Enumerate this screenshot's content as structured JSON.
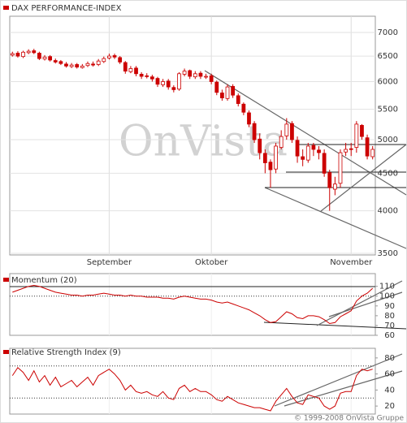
{
  "chart_data": [
    {
      "type": "candlestick",
      "title": "DAX PERFORMANCE-INDEX",
      "color": "#cc0000",
      "categories": [
        null,
        null,
        null,
        null,
        null,
        null,
        null,
        null,
        null,
        null,
        null,
        null,
        null,
        null,
        null,
        null,
        null,
        null,
        "September",
        null,
        null,
        null,
        null,
        null,
        null,
        null,
        null,
        null,
        null,
        null,
        null,
        null,
        null,
        null,
        null,
        null,
        null,
        "Oktober",
        null,
        null,
        null,
        null,
        null,
        null,
        null,
        null,
        null,
        null,
        null,
        null,
        null,
        null,
        null,
        null,
        null,
        null,
        null,
        null,
        null,
        null,
        null,
        null,
        null,
        "November",
        null,
        null,
        null,
        null
      ],
      "open": [
        6520,
        6560,
        6490,
        6570,
        6610,
        6560,
        6440,
        6490,
        6410,
        6390,
        6340,
        6290,
        6330,
        6270,
        6310,
        6340,
        6330,
        6390,
        6460,
        6510,
        6470,
        6370,
        6190,
        6260,
        6140,
        6110,
        6090,
        6060,
        5940,
        6010,
        5890,
        5860,
        6140,
        6210,
        6090,
        6160,
        6090,
        6110,
        5990,
        5790,
        5690,
        5910,
        5740,
        5590,
        5440,
        5260,
        5010,
        4790,
        4660,
        4560,
        4880,
        5060,
        5260,
        4990,
        4740,
        4690,
        4910,
        4840,
        4790,
        4510,
        4280,
        4360,
        4810,
        4860,
        4880,
        5230,
        5030,
        4740
      ],
      "high": [
        6590,
        6600,
        6610,
        6640,
        6650,
        6590,
        6520,
        6520,
        6450,
        6420,
        6380,
        6360,
        6360,
        6340,
        6390,
        6390,
        6440,
        6490,
        6550,
        6550,
        6500,
        6400,
        6300,
        6300,
        6180,
        6160,
        6130,
        6090,
        6050,
        6050,
        5930,
        6180,
        6250,
        6230,
        6200,
        6200,
        6150,
        6150,
        6020,
        5850,
        5950,
        5950,
        5780,
        5620,
        5480,
        5300,
        5100,
        4850,
        4700,
        4950,
        5150,
        5350,
        5300,
        5050,
        4850,
        4950,
        4950,
        4900,
        4850,
        4550,
        4450,
        4850,
        4950,
        4950,
        5300,
        5250,
        5080,
        4900
      ],
      "low": [
        6490,
        6470,
        6460,
        6540,
        6540,
        6420,
        6410,
        6390,
        6350,
        6320,
        6270,
        6260,
        6250,
        6250,
        6280,
        6290,
        6300,
        6360,
        6430,
        6440,
        6340,
        6150,
        6160,
        6100,
        6050,
        6060,
        6000,
        5900,
        5900,
        5850,
        5800,
        5830,
        6100,
        6050,
        6050,
        6050,
        6050,
        5950,
        5750,
        5650,
        5650,
        5700,
        5550,
        5400,
        5200,
        4950,
        4700,
        4500,
        4300,
        4500,
        4850,
        5000,
        4950,
        4650,
        4600,
        4650,
        4750,
        4700,
        4450,
        4000,
        4200,
        4300,
        4750,
        4750,
        4800,
        5000,
        4700,
        4700
      ],
      "close": [
        6550,
        6500,
        6580,
        6600,
        6570,
        6450,
        6480,
        6420,
        6380,
        6350,
        6300,
        6320,
        6280,
        6300,
        6350,
        6320,
        6400,
        6450,
        6500,
        6480,
        6380,
        6200,
        6250,
        6150,
        6100,
        6100,
        6050,
        5950,
        6000,
        5900,
        5850,
        6150,
        6200,
        6100,
        6150,
        6100,
        6100,
        6000,
        5800,
        5700,
        5900,
        5750,
        5600,
        5450,
        5250,
        5000,
        4800,
        4650,
        4550,
        4900,
        5050,
        5250,
        5000,
        4750,
        4700,
        4900,
        4850,
        4800,
        4500,
        4300,
        4350,
        4800,
        4850,
        4850,
        5250,
        5050,
        4750,
        4850
      ],
      "ylim": [
        3500,
        7000
      ],
      "yticks": [
        3500,
        4000,
        4500,
        5000,
        5500,
        6000,
        6500,
        7000
      ],
      "log": true,
      "grid": true
    },
    {
      "type": "line",
      "title": "Momentum (20)",
      "color": "#cc0000",
      "values": [
        104,
        106,
        108,
        110,
        111,
        110,
        108,
        106,
        104,
        103,
        102,
        101,
        101,
        100,
        101,
        101,
        102,
        103,
        102,
        101,
        101,
        100,
        101,
        100,
        100,
        99,
        99,
        99,
        98,
        98,
        97,
        99,
        100,
        99,
        98,
        97,
        97,
        96,
        94,
        93,
        94,
        92,
        90,
        88,
        86,
        83,
        80,
        76,
        73,
        74,
        79,
        84,
        82,
        78,
        77,
        80,
        80,
        79,
        76,
        72,
        73,
        79,
        82,
        85,
        95,
        100,
        103,
        108
      ],
      "ylim": [
        60,
        123
      ],
      "yticks": [
        60,
        70,
        80,
        90,
        100,
        110
      ],
      "reference": [
        100
      ]
    },
    {
      "type": "line",
      "title": "Relative Strength Index (9)",
      "color": "#cc0000",
      "values": [
        58,
        68,
        62,
        52,
        64,
        50,
        58,
        46,
        56,
        44,
        48,
        52,
        44,
        50,
        56,
        46,
        58,
        62,
        66,
        60,
        52,
        40,
        46,
        38,
        36,
        38,
        34,
        32,
        38,
        30,
        28,
        42,
        46,
        38,
        42,
        38,
        38,
        34,
        28,
        26,
        32,
        28,
        24,
        22,
        20,
        18,
        18,
        16,
        14,
        26,
        34,
        42,
        32,
        24,
        22,
        34,
        32,
        30,
        20,
        16,
        20,
        36,
        38,
        38,
        58,
        66,
        64,
        66
      ],
      "ylim": [
        10,
        92
      ],
      "yticks": [
        20,
        40,
        60,
        80
      ],
      "reference": [
        30,
        70
      ]
    }
  ],
  "watermark": "OnVista",
  "footer": "© 1999-2008 OnVista Gruppe"
}
